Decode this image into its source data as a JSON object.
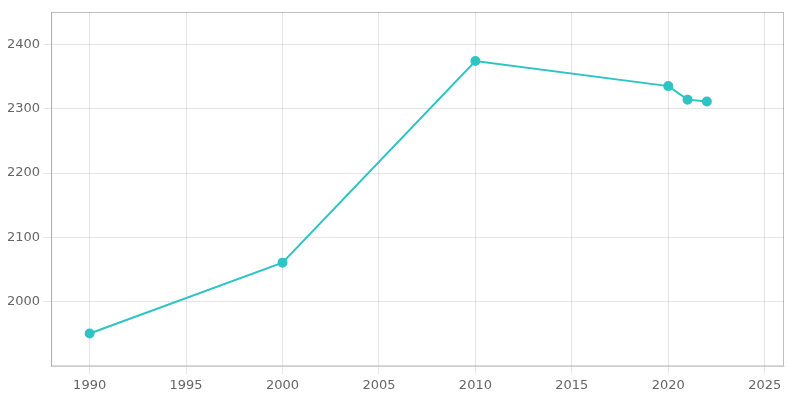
{
  "chart_data": {
    "type": "line",
    "x": [
      1990,
      2000,
      2010,
      2020,
      2021,
      2022
    ],
    "values": [
      1951,
      2061,
      2374,
      2335,
      2314,
      2311
    ],
    "color": "#2EC4C4",
    "marker": "circle",
    "xlim": [
      1988,
      2026
    ],
    "ylim": [
      1900,
      2450
    ],
    "xticks": [
      1990,
      1995,
      2000,
      2005,
      2010,
      2015,
      2020,
      2025
    ],
    "yticks": [
      2000,
      2100,
      2200,
      2300,
      2400
    ],
    "grid": true
  }
}
